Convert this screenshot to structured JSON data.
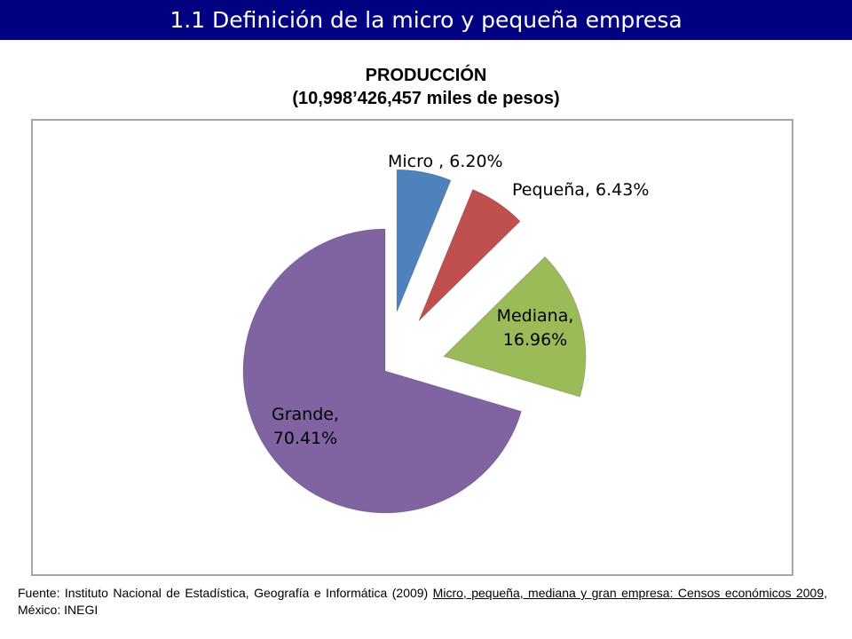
{
  "header": {
    "title": "1.1 Definición de la micro y pequeña empresa"
  },
  "chart_data": {
    "type": "pie",
    "title": "PRODUCCIÓN",
    "subtitle": "(10,998’426,457 miles de pesos)",
    "slices": [
      {
        "name": "Micro",
        "value": 6.2,
        "label_lines": [
          "Micro , 6.20%"
        ],
        "color": "#4f81bd",
        "exploded": true
      },
      {
        "name": "Pequeña",
        "value": 6.43,
        "label_lines": [
          "Pequeña, 6.43%"
        ],
        "color": "#c0504d",
        "exploded": true
      },
      {
        "name": "Mediana",
        "value": 16.96,
        "label_lines": [
          "Mediana,",
          "16.96%"
        ],
        "color": "#9bbb59",
        "exploded": true
      },
      {
        "name": "Grande",
        "value": 70.41,
        "label_lines": [
          "Grande,",
          "70.41%"
        ],
        "color": "#8064a2",
        "exploded": false
      }
    ],
    "legend": "none"
  },
  "source": {
    "prefix": "Fuente: Instituto Nacional de Estadística, Geografía e Informática (2009) ",
    "reference": "Micro, pequeña, mediana y gran empresa: Censos económicos 2009",
    "suffix": ", México: INEGI"
  }
}
